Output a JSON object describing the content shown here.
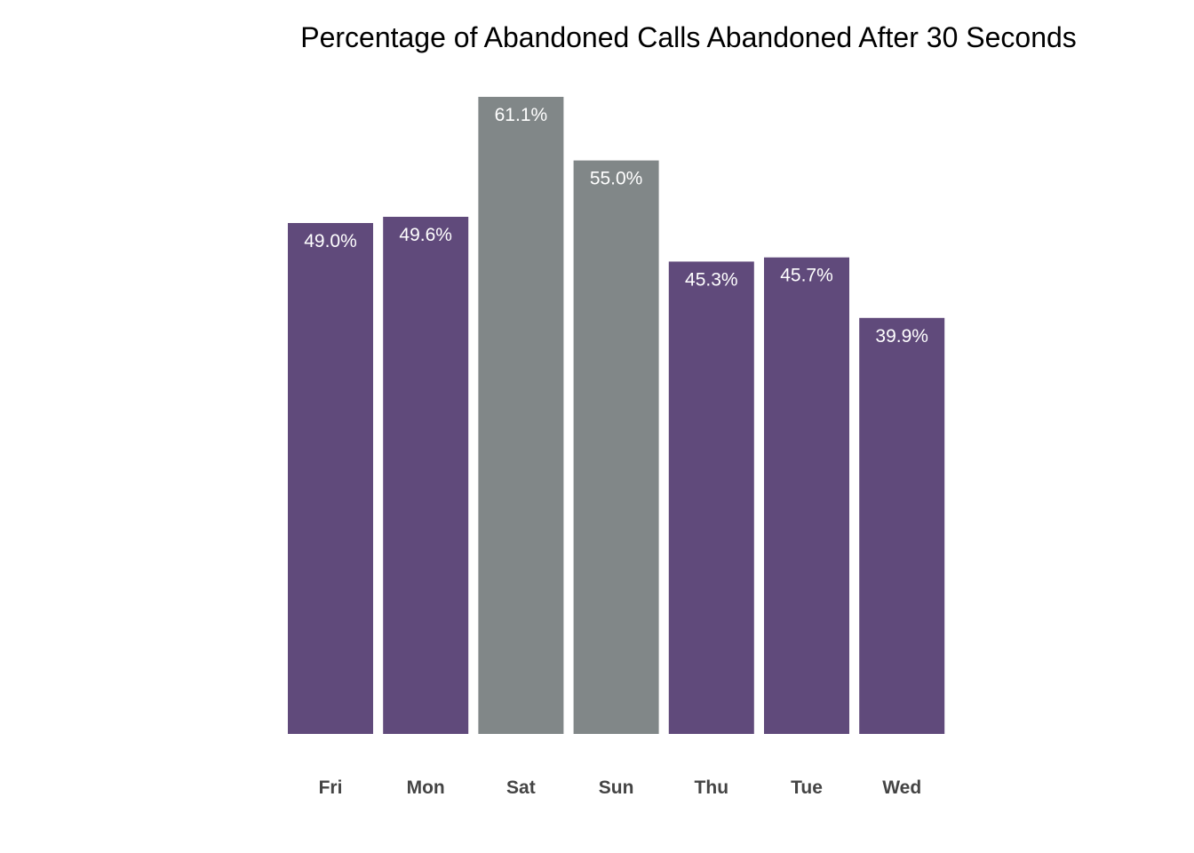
{
  "chart_data": {
    "type": "bar",
    "title": "Percentage of Abandoned Calls Abandoned After 30 Seconds",
    "xlabel": "",
    "ylabel": "",
    "categories": [
      "Fri",
      "Mon",
      "Sat",
      "Sun",
      "Thu",
      "Tue",
      "Wed"
    ],
    "values": [
      49.0,
      49.6,
      61.1,
      55.0,
      45.3,
      45.7,
      39.9
    ],
    "value_labels": [
      "49.0%",
      "49.6%",
      "61.1%",
      "55.0%",
      "45.3%",
      "45.7%",
      "39.9%"
    ],
    "highlight": [
      false,
      false,
      true,
      true,
      false,
      false,
      false
    ],
    "ylim": [
      0,
      61.1
    ],
    "grid": false,
    "legend": "none",
    "colors": {
      "weekday": "#604a7b",
      "weekend": "#818788"
    }
  }
}
